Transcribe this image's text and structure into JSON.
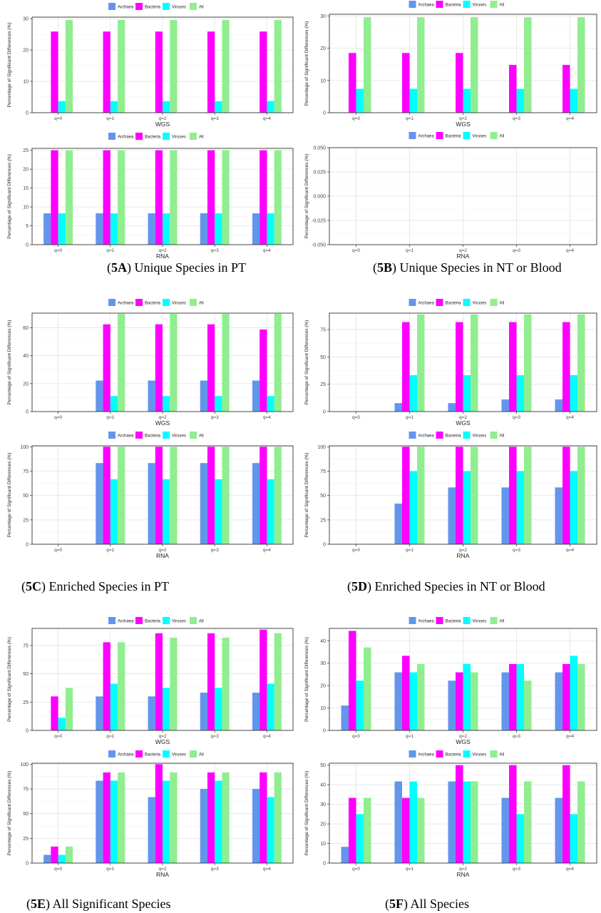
{
  "colors": {
    "Archaea": "#6495ed",
    "Bacteria": "#ff00ff",
    "Viruses": "#00ffff",
    "All": "#90ee90"
  },
  "legend_labels": [
    "Archaea",
    "Bacteria",
    "Viruses",
    "All"
  ],
  "captions": [
    {
      "tag": "5A",
      "text": ") Unique Species in PT"
    },
    {
      "tag": "5B",
      "text": ") Unique Species in NT or Blood"
    },
    {
      "tag": "5C",
      "text": ") Enriched Species in PT"
    },
    {
      "tag": "5D",
      "text": ") Enriched Species in NT or Blood"
    },
    {
      "tag": "5E",
      "text": ") All Significant Species"
    },
    {
      "tag": "5F",
      "text": ") All Species"
    }
  ],
  "chart_data": [
    {
      "type": "bar",
      "panel": "5A",
      "xlabel": "WGS",
      "ylabel": "Percentage of Significant Differences (%)",
      "categories": [
        "q=0",
        "q=1",
        "q=2",
        "q=3",
        "q=4"
      ],
      "ylim": [
        0,
        30.5
      ],
      "yticks": [
        0,
        10,
        20,
        30
      ],
      "series": [
        {
          "name": "Archaea",
          "values": [
            0,
            0,
            0,
            0,
            0
          ]
        },
        {
          "name": "Bacteria",
          "values": [
            25.9,
            25.9,
            25.9,
            25.9,
            25.9
          ]
        },
        {
          "name": "Viruses",
          "values": [
            3.7,
            3.7,
            3.7,
            3.7,
            3.7
          ]
        },
        {
          "name": "All",
          "values": [
            29.6,
            29.6,
            29.6,
            29.6,
            29.6
          ]
        }
      ]
    },
    {
      "type": "bar",
      "panel": "5B",
      "xlabel": "WGS",
      "ylabel": "Percentage of Significant Differences (%)",
      "categories": [
        "q=0",
        "q=1",
        "q=2",
        "q=3",
        "q=4"
      ],
      "ylim": [
        0,
        30.5
      ],
      "yticks": [
        0,
        10,
        20,
        30
      ],
      "series": [
        {
          "name": "Archaea",
          "values": [
            0,
            0,
            0,
            0,
            0
          ]
        },
        {
          "name": "Bacteria",
          "values": [
            18.5,
            18.5,
            18.5,
            14.8,
            14.8
          ]
        },
        {
          "name": "Viruses",
          "values": [
            7.4,
            7.4,
            7.4,
            7.4,
            7.4
          ]
        },
        {
          "name": "All",
          "values": [
            29.6,
            29.6,
            29.6,
            29.6,
            29.6
          ]
        }
      ]
    },
    {
      "type": "bar",
      "panel": "5A",
      "xlabel": "RNA",
      "ylabel": "Percentage of Significant Differences (%)",
      "categories": [
        "q=0",
        "q=1",
        "q=2",
        "q=3",
        "q=4"
      ],
      "ylim": [
        0,
        25.5
      ],
      "yticks": [
        0,
        5,
        10,
        15,
        20,
        25
      ],
      "series": [
        {
          "name": "Archaea",
          "values": [
            8.3,
            8.3,
            8.3,
            8.3,
            8.3
          ]
        },
        {
          "name": "Bacteria",
          "values": [
            25,
            25,
            25,
            25,
            25
          ]
        },
        {
          "name": "Viruses",
          "values": [
            8.3,
            8.3,
            8.3,
            8.3,
            8.3
          ]
        },
        {
          "name": "All",
          "values": [
            25,
            25,
            25,
            25,
            25
          ]
        }
      ]
    },
    {
      "type": "bar",
      "panel": "5B",
      "xlabel": "RNA",
      "ylabel": "Percentage of Significant Differences (%)",
      "categories": [
        "q=0",
        "q=1",
        "q=2",
        "q=3",
        "q=4"
      ],
      "ylim": [
        -0.05,
        0.05
      ],
      "yticks": [
        -0.05,
        -0.025,
        0,
        0.025,
        0.05
      ],
      "ytick_labels": [
        "-0.050",
        "-0.025",
        "0.000",
        "0.025",
        "0.050"
      ],
      "series": [
        {
          "name": "Archaea",
          "values": [
            0,
            0,
            0,
            0,
            0
          ]
        },
        {
          "name": "Bacteria",
          "values": [
            0,
            0,
            0,
            0,
            0
          ]
        },
        {
          "name": "Viruses",
          "values": [
            0,
            0,
            0,
            0,
            0
          ]
        },
        {
          "name": "All",
          "values": [
            0,
            0,
            0,
            0,
            0
          ]
        }
      ]
    },
    {
      "type": "bar",
      "panel": "5C",
      "xlabel": "WGS",
      "ylabel": "Percentage of Significant Differences (%)",
      "categories": [
        "q=0",
        "q=1",
        "q=2",
        "q=3",
        "q=4"
      ],
      "ylim": [
        0,
        70.5
      ],
      "yticks": [
        0,
        20,
        40,
        60
      ],
      "series": [
        {
          "name": "Archaea",
          "values": [
            0,
            22.2,
            22.2,
            22.2,
            22.2
          ]
        },
        {
          "name": "Bacteria",
          "values": [
            0,
            62.5,
            62.5,
            62.5,
            58.8
          ]
        },
        {
          "name": "Viruses",
          "values": [
            0,
            11.1,
            11.1,
            11.1,
            11.1
          ]
        },
        {
          "name": "All",
          "values": [
            0,
            70,
            70,
            70,
            70
          ]
        }
      ]
    },
    {
      "type": "bar",
      "panel": "5D",
      "xlabel": "WGS",
      "ylabel": "Percentage of Significant Differences (%)",
      "categories": [
        "q=0",
        "q=1",
        "q=2",
        "q=3",
        "q=4"
      ],
      "ylim": [
        0,
        90
      ],
      "yticks": [
        0,
        25,
        50,
        75
      ],
      "series": [
        {
          "name": "Archaea",
          "values": [
            0,
            7.7,
            7.7,
            11.1,
            11.1
          ]
        },
        {
          "name": "Bacteria",
          "values": [
            0,
            81.8,
            81.8,
            81.8,
            81.8
          ]
        },
        {
          "name": "Viruses",
          "values": [
            0,
            33.3,
            33.3,
            33.3,
            33.3
          ]
        },
        {
          "name": "All",
          "values": [
            0,
            88.9,
            88.9,
            88.9,
            88.9
          ]
        }
      ]
    },
    {
      "type": "bar",
      "panel": "5C",
      "xlabel": "RNA",
      "ylabel": "Percentage of Significant Differences (%)",
      "categories": [
        "q=0",
        "q=1",
        "q=2",
        "q=3",
        "q=4"
      ],
      "ylim": [
        0,
        101
      ],
      "yticks": [
        0,
        25,
        50,
        75,
        100
      ],
      "series": [
        {
          "name": "Archaea",
          "values": [
            0,
            83.3,
            83.3,
            83.3,
            83.3
          ]
        },
        {
          "name": "Bacteria",
          "values": [
            0,
            100,
            100,
            100,
            100
          ]
        },
        {
          "name": "Viruses",
          "values": [
            0,
            66.7,
            66.7,
            66.7,
            66.7
          ]
        },
        {
          "name": "All",
          "values": [
            0,
            100,
            100,
            100,
            100
          ]
        }
      ]
    },
    {
      "type": "bar",
      "panel": "5D",
      "xlabel": "RNA",
      "ylabel": "Percentage of Significant Differences (%)",
      "categories": [
        "q=0",
        "q=1",
        "q=2",
        "q=3",
        "q=4"
      ],
      "ylim": [
        0,
        101
      ],
      "yticks": [
        0,
        25,
        50,
        75,
        100
      ],
      "series": [
        {
          "name": "Archaea",
          "values": [
            0,
            41.7,
            58.3,
            58.3,
            58.3
          ]
        },
        {
          "name": "Bacteria",
          "values": [
            0,
            100,
            100,
            100,
            100
          ]
        },
        {
          "name": "Viruses",
          "values": [
            0,
            75,
            75,
            75,
            75
          ]
        },
        {
          "name": "All",
          "values": [
            0,
            100,
            100,
            100,
            100
          ]
        }
      ]
    },
    {
      "type": "bar",
      "panel": "5E",
      "xlabel": "WGS",
      "ylabel": "Percentage of Significant Differences (%)",
      "categories": [
        "q=0",
        "q=1",
        "q=2",
        "q=3",
        "q=4"
      ],
      "ylim": [
        0,
        90
      ],
      "yticks": [
        0,
        25,
        50,
        75
      ],
      "series": [
        {
          "name": "Archaea",
          "values": [
            0,
            30,
            30,
            33.3,
            33.3
          ]
        },
        {
          "name": "Bacteria",
          "values": [
            30,
            77.8,
            85.7,
            85.7,
            88.9
          ]
        },
        {
          "name": "Viruses",
          "values": [
            11.1,
            41.2,
            37.5,
            37.5,
            41.2
          ]
        },
        {
          "name": "All",
          "values": [
            37.5,
            77.8,
            81.8,
            81.8,
            85.7
          ]
        }
      ]
    },
    {
      "type": "bar",
      "panel": "5F",
      "xlabel": "WGS",
      "ylabel": "Percentage of Significant Differences (%)",
      "categories": [
        "q=0",
        "q=1",
        "q=2",
        "q=3",
        "q=4"
      ],
      "ylim": [
        0,
        45.5
      ],
      "yticks": [
        0,
        10,
        20,
        30,
        40
      ],
      "series": [
        {
          "name": "Archaea",
          "values": [
            11.1,
            25.9,
            22.2,
            25.9,
            25.9
          ]
        },
        {
          "name": "Bacteria",
          "values": [
            44.4,
            33.3,
            25.9,
            29.6,
            29.6
          ]
        },
        {
          "name": "Viruses",
          "values": [
            22.2,
            25.9,
            29.6,
            29.6,
            33.3
          ]
        },
        {
          "name": "All",
          "values": [
            37,
            29.6,
            25.9,
            22.2,
            29.6
          ]
        }
      ]
    },
    {
      "type": "bar",
      "panel": "5E",
      "xlabel": "RNA",
      "ylabel": "Percentage of Significant Differences (%)",
      "categories": [
        "q=0",
        "q=1",
        "q=2",
        "q=3",
        "q=4"
      ],
      "ylim": [
        0,
        101
      ],
      "yticks": [
        0,
        25,
        50,
        75,
        100
      ],
      "series": [
        {
          "name": "Archaea",
          "values": [
            8.3,
            83.3,
            66.7,
            75,
            75
          ]
        },
        {
          "name": "Bacteria",
          "values": [
            16.7,
            91.7,
            100,
            91.7,
            91.7
          ]
        },
        {
          "name": "Viruses",
          "values": [
            8.3,
            83.3,
            83.3,
            83.3,
            66.7
          ]
        },
        {
          "name": "All",
          "values": [
            16.7,
            91.7,
            91.7,
            91.7,
            91.7
          ]
        }
      ]
    },
    {
      "type": "bar",
      "panel": "5F",
      "xlabel": "RNA",
      "ylabel": "Percentage of Significant Differences (%)",
      "categories": [
        "q=0",
        "q=1",
        "q=2",
        "q=3",
        "q=4"
      ],
      "ylim": [
        0,
        51
      ],
      "yticks": [
        0,
        10,
        20,
        30,
        40,
        50
      ],
      "series": [
        {
          "name": "Archaea",
          "values": [
            8.3,
            41.7,
            41.7,
            33.3,
            33.3
          ]
        },
        {
          "name": "Bacteria",
          "values": [
            33.3,
            33.3,
            50,
            50,
            50
          ]
        },
        {
          "name": "Viruses",
          "values": [
            25,
            41.7,
            41.7,
            25,
            25
          ]
        },
        {
          "name": "All",
          "values": [
            33.3,
            33.3,
            41.7,
            41.7,
            41.7
          ]
        }
      ]
    }
  ]
}
